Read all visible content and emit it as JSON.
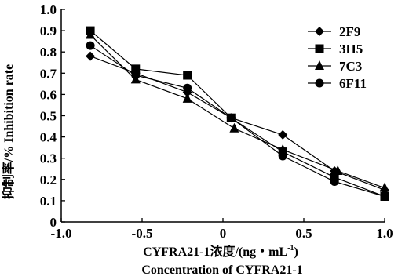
{
  "chart_data": {
    "type": "line",
    "xlim": [
      -1.0,
      1.0
    ],
    "ylim": [
      0,
      1.0
    ],
    "x_ticks": [
      "-1.0",
      "-0.5",
      "0",
      "0.5",
      "1.0"
    ],
    "y_ticks": [
      "0",
      "0.1",
      "0.2",
      "0.3",
      "0.4",
      "0.5",
      "0.6",
      "0.7",
      "0.8",
      "0.9",
      "1.0"
    ],
    "xlabel_line1": "CYFRA21-1浓度/(ng・mL",
    "xlabel_sup": "-1",
    "xlabel_line1_end": ")",
    "xlabel_line2": "Concentration of CYFRA21-1",
    "ylabel": "抑制率/% Inhibition rate",
    "legend_position": "top-right",
    "grid": false,
    "series": [
      {
        "name": "2F9",
        "marker": "diamond",
        "x": [
          -0.82,
          -0.54,
          -0.22,
          0.05,
          0.37,
          0.69,
          1.0
        ],
        "y": [
          0.78,
          0.7,
          0.61,
          0.49,
          0.41,
          0.24,
          0.15
        ]
      },
      {
        "name": "3H5",
        "marker": "square",
        "x": [
          -0.82,
          -0.54,
          -0.22,
          0.05,
          0.37,
          0.69,
          1.0
        ],
        "y": [
          0.9,
          0.72,
          0.69,
          0.49,
          0.33,
          0.21,
          0.12
        ]
      },
      {
        "name": "7C3",
        "marker": "triangle",
        "x": [
          -0.82,
          -0.54,
          -0.22,
          0.07,
          0.37,
          0.71,
          1.0
        ],
        "y": [
          0.88,
          0.67,
          0.58,
          0.44,
          0.34,
          0.24,
          0.16
        ]
      },
      {
        "name": "6F11",
        "marker": "circle",
        "x": [
          -0.82,
          -0.54,
          -0.22,
          0.05,
          0.37,
          0.69,
          1.0
        ],
        "y": [
          0.83,
          0.69,
          0.63,
          0.49,
          0.31,
          0.19,
          0.12
        ]
      }
    ]
  }
}
